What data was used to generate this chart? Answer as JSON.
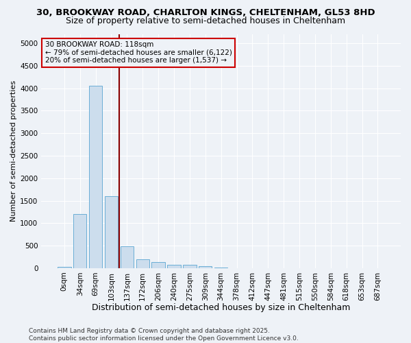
{
  "title_line1": "30, BROOKWAY ROAD, CHARLTON KINGS, CHELTENHAM, GL53 8HD",
  "title_line2": "Size of property relative to semi-detached houses in Cheltenham",
  "xlabel": "Distribution of semi-detached houses by size in Cheltenham",
  "ylabel": "Number of semi-detached properties",
  "categories": [
    "0sqm",
    "34sqm",
    "69sqm",
    "103sqm",
    "137sqm",
    "172sqm",
    "206sqm",
    "240sqm",
    "275sqm",
    "309sqm",
    "344sqm",
    "378sqm",
    "412sqm",
    "447sqm",
    "481sqm",
    "515sqm",
    "550sqm",
    "584sqm",
    "618sqm",
    "653sqm",
    "687sqm"
  ],
  "values": [
    30,
    1200,
    4050,
    1600,
    480,
    200,
    130,
    80,
    70,
    50,
    10,
    5,
    3,
    2,
    1,
    1,
    0,
    0,
    0,
    0,
    0
  ],
  "bar_color": "#ccdded",
  "bar_edge_color": "#6aaed6",
  "vline_color": "#8b0000",
  "annotation_text": "30 BROOKWAY ROAD: 118sqm\n← 79% of semi-detached houses are smaller (6,122)\n20% of semi-detached houses are larger (1,537) →",
  "annotation_box_color": "#cc0000",
  "ylim": [
    0,
    5200
  ],
  "yticks": [
    0,
    500,
    1000,
    1500,
    2000,
    2500,
    3000,
    3500,
    4000,
    4500,
    5000
  ],
  "background_color": "#eef2f7",
  "grid_color": "#ffffff",
  "footnote": "Contains HM Land Registry data © Crown copyright and database right 2025.\nContains public sector information licensed under the Open Government Licence v3.0.",
  "title_fontsize": 9.5,
  "subtitle_fontsize": 9,
  "xlabel_fontsize": 9,
  "ylabel_fontsize": 8,
  "tick_fontsize": 7.5,
  "footnote_fontsize": 6.5
}
